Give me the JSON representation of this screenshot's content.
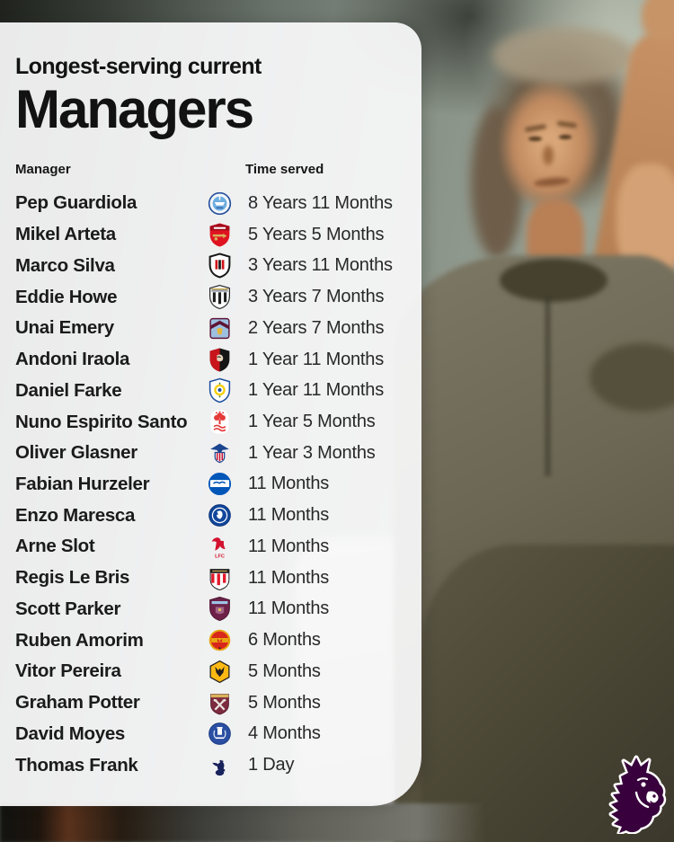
{
  "title": {
    "line1": "Longest-serving current",
    "line2": "Managers"
  },
  "columns": {
    "manager": "Manager",
    "time_served": "Time served"
  },
  "rows": [
    {
      "manager": "Pep Guardiola",
      "badge": "man-city",
      "time": "8 Years 11 Months"
    },
    {
      "manager": "Mikel Arteta",
      "badge": "arsenal",
      "time": "5 Years 5 Months"
    },
    {
      "manager": "Marco Silva",
      "badge": "fulham",
      "time": "3 Years 11 Months"
    },
    {
      "manager": "Eddie Howe",
      "badge": "newcastle",
      "time": "3 Years 7 Months"
    },
    {
      "manager": "Unai Emery",
      "badge": "aston-villa",
      "time": "2 Years 7 Months"
    },
    {
      "manager": "Andoni Iraola",
      "badge": "bournemouth",
      "time": "1 Year 11 Months"
    },
    {
      "manager": "Daniel Farke",
      "badge": "leeds",
      "time": "1 Year 11 Months"
    },
    {
      "manager": "Nuno Espirito Santo",
      "badge": "nottingham-forest",
      "time": "1 Year 5 Months"
    },
    {
      "manager": "Oliver Glasner",
      "badge": "crystal-palace",
      "time": "1 Year 3 Months"
    },
    {
      "manager": "Fabian Hurzeler",
      "badge": "brighton",
      "time": "11 Months"
    },
    {
      "manager": "Enzo Maresca",
      "badge": "chelsea",
      "time": "11 Months"
    },
    {
      "manager": "Arne Slot",
      "badge": "liverpool",
      "time": "11 Months"
    },
    {
      "manager": "Regis Le Bris",
      "badge": "sunderland",
      "time": "11 Months"
    },
    {
      "manager": "Scott Parker",
      "badge": "burnley",
      "time": "11 Months"
    },
    {
      "manager": "Ruben Amorim",
      "badge": "man-united",
      "time": "6 Months"
    },
    {
      "manager": "Vitor Pereira",
      "badge": "wolves",
      "time": "5 Months"
    },
    {
      "manager": "Graham Potter",
      "badge": "west-ham",
      "time": "5 Months"
    },
    {
      "manager": "David Moyes",
      "badge": "everton",
      "time": "4 Months"
    },
    {
      "manager": "Thomas Frank",
      "badge": "tottenham",
      "time": "1 Day"
    }
  ],
  "footer": {
    "league_logo": "premier-league-lion-icon"
  },
  "colors": {
    "card_bg": "#fafafb",
    "title_text": "#121212",
    "name_text": "#1b1b1b",
    "time_text": "#282828",
    "pl_purple": "#38003c"
  },
  "chart_data": {
    "type": "table",
    "title": "Longest-serving current Managers",
    "columns": [
      "Manager",
      "Club badge",
      "Time served"
    ],
    "rows": [
      [
        "Pep Guardiola",
        "Manchester City",
        "8 Years 11 Months"
      ],
      [
        "Mikel Arteta",
        "Arsenal",
        "5 Years 5 Months"
      ],
      [
        "Marco Silva",
        "Fulham",
        "3 Years 11 Months"
      ],
      [
        "Eddie Howe",
        "Newcastle United",
        "3 Years 7 Months"
      ],
      [
        "Unai Emery",
        "Aston Villa",
        "2 Years 7 Months"
      ],
      [
        "Andoni Iraola",
        "AFC Bournemouth",
        "1 Year 11 Months"
      ],
      [
        "Daniel Farke",
        "Leeds United",
        "1 Year 11 Months"
      ],
      [
        "Nuno Espirito Santo",
        "Nottingham Forest",
        "1 Year 5 Months"
      ],
      [
        "Oliver Glasner",
        "Crystal Palace",
        "1 Year 3 Months"
      ],
      [
        "Fabian Hurzeler",
        "Brighton & Hove Albion",
        "11 Months"
      ],
      [
        "Enzo Maresca",
        "Chelsea",
        "11 Months"
      ],
      [
        "Arne Slot",
        "Liverpool",
        "11 Months"
      ],
      [
        "Regis Le Bris",
        "Sunderland",
        "11 Months"
      ],
      [
        "Scott Parker",
        "Burnley",
        "11 Months"
      ],
      [
        "Ruben Amorim",
        "Manchester United",
        "6 Months"
      ],
      [
        "Vitor Pereira",
        "Wolverhampton Wanderers",
        "5 Months"
      ],
      [
        "Graham Potter",
        "West Ham United",
        "5 Months"
      ],
      [
        "David Moyes",
        "Everton",
        "4 Months"
      ],
      [
        "Thomas Frank",
        "Tottenham Hotspur",
        "1 Day"
      ]
    ]
  }
}
